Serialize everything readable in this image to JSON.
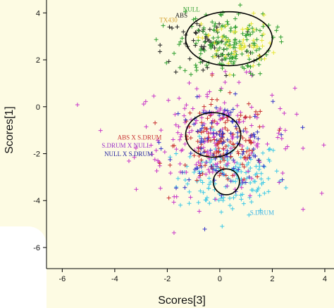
{
  "chart_data": {
    "type": "scatter",
    "title": "",
    "xlabel": "Scores[3]",
    "ylabel": "Scores[1]",
    "xlim": [
      -6.6,
      4.35
    ],
    "ylim": [
      -6.9,
      4.55
    ],
    "xticks": [
      "-6",
      "-4",
      "-2",
      "0",
      "2",
      "4"
    ],
    "yticks": [
      "4",
      "2",
      "0",
      "-2",
      "-4",
      "-6"
    ],
    "marker": "+",
    "grid": false,
    "legend": "none",
    "series": [
      {
        "name": "NULL",
        "color": "#2e9e2e",
        "center": [
          0.2,
          2.7
        ],
        "spread": [
          0.9,
          0.7
        ],
        "count": 160
      },
      {
        "name": "TX430",
        "color": "#e6e633",
        "center": [
          0.7,
          2.7
        ],
        "spread": [
          0.7,
          0.6
        ],
        "count": 55
      },
      {
        "name": "ABS",
        "color": "#222222",
        "center": [
          -0.4,
          2.6
        ],
        "spread": [
          0.9,
          0.7
        ],
        "count": 60
      },
      {
        "name": "ABS X S.DRUM",
        "color": "#c83030",
        "center": [
          0.1,
          -1.6
        ],
        "spread": [
          0.9,
          0.9
        ],
        "count": 140
      },
      {
        "name": "S.DRUM X NULL",
        "color": "#c838c8",
        "center": [
          -0.2,
          -1.3
        ],
        "spread": [
          1.5,
          1.2
        ],
        "count": 190
      },
      {
        "name": "NULL X S.DRUM",
        "color": "#3434c8",
        "center": [
          0.0,
          -1.6
        ],
        "spread": [
          1.0,
          0.9
        ],
        "count": 110
      },
      {
        "name": "S.DRUM",
        "color": "#3cc8e6",
        "center": [
          0.4,
          -3.0
        ],
        "spread": [
          1.0,
          0.8
        ],
        "count": 150
      }
    ],
    "annotations": [
      {
        "text": "NULL",
        "x": -1.4,
        "y": 4.05,
        "color": "#2e9e2e"
      },
      {
        "text": "ABS",
        "x": -1.7,
        "y": 3.8,
        "color": "#222222"
      },
      {
        "text": "TX430",
        "x": -2.3,
        "y": 3.6,
        "color": "#d4a030"
      },
      {
        "text": "ABS X S.DRUM",
        "x": -3.9,
        "y": -1.4,
        "color": "#c83030"
      },
      {
        "text": "S.DRUM X NULL",
        "x": -4.5,
        "y": -1.75,
        "color": "#9a30c8"
      },
      {
        "text": "NULL X S.DRUM",
        "x": -4.4,
        "y": -2.1,
        "color": "#2020a0"
      },
      {
        "text": "S.DRUM",
        "x": 1.15,
        "y": -4.6,
        "color": "#3cb4e6"
      }
    ],
    "ellipses": [
      {
        "cx": 0.35,
        "cy": 2.9,
        "rx": 1.65,
        "ry": 1.15
      },
      {
        "cx": -0.25,
        "cy": -1.2,
        "rx": 1.05,
        "ry": 0.95
      },
      {
        "cx": 0.25,
        "cy": -3.2,
        "rx": 0.5,
        "ry": 0.55
      }
    ]
  }
}
